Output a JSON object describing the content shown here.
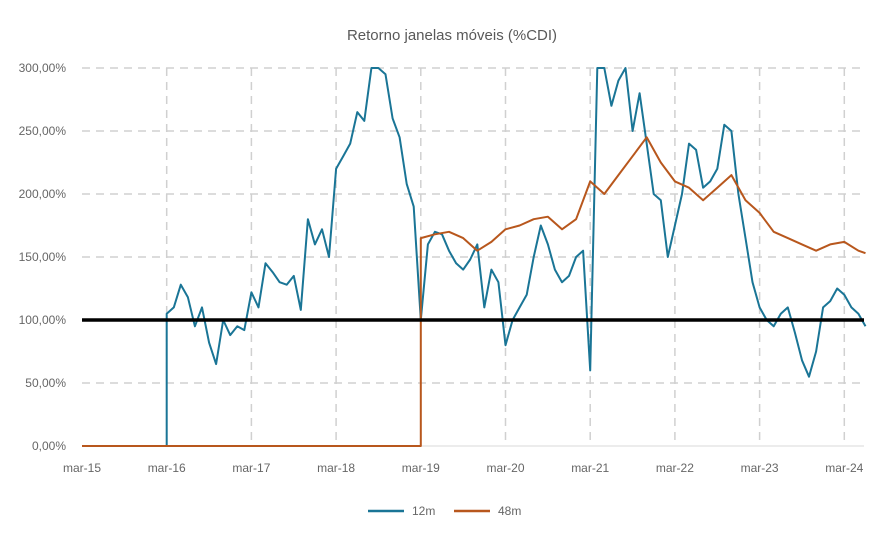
{
  "chart_data": {
    "type": "line",
    "title": "Retorno janelas móveis (%CDI)",
    "x_tick_labels": [
      "mar-15",
      "mar-16",
      "mar-17",
      "mar-18",
      "mar-19",
      "mar-20",
      "mar-21",
      "mar-22",
      "mar-23",
      "mar-24"
    ],
    "x_start": "2015-03",
    "x_end": "2024-06",
    "ylim": [
      0,
      300
    ],
    "y_ticks": [
      0,
      50,
      100,
      150,
      200,
      250,
      300
    ],
    "y_tick_labels": [
      "0,00%",
      "50,00%",
      "100,00%",
      "150,00%",
      "200,00%",
      "250,00%",
      "300,00%"
    ],
    "grid": true,
    "reference_line": {
      "y": 100,
      "color": "#000000"
    },
    "legend_position": "bottom",
    "series": [
      {
        "name": "12m",
        "color": "#1A7596",
        "points": [
          [
            "2015-03",
            0
          ],
          [
            "2016-02",
            0
          ],
          [
            "2016-03",
            0
          ],
          [
            "2016-03",
            105
          ],
          [
            "2016-04",
            110
          ],
          [
            "2016-05",
            128
          ],
          [
            "2016-06",
            118
          ],
          [
            "2016-07",
            95
          ],
          [
            "2016-08",
            110
          ],
          [
            "2016-09",
            82
          ],
          [
            "2016-10",
            65
          ],
          [
            "2016-11",
            100
          ],
          [
            "2016-12",
            88
          ],
          [
            "2017-01",
            95
          ],
          [
            "2017-02",
            92
          ],
          [
            "2017-03",
            122
          ],
          [
            "2017-04",
            110
          ],
          [
            "2017-05",
            145
          ],
          [
            "2017-06",
            138
          ],
          [
            "2017-07",
            130
          ],
          [
            "2017-08",
            128
          ],
          [
            "2017-09",
            135
          ],
          [
            "2017-10",
            108
          ],
          [
            "2017-11",
            180
          ],
          [
            "2017-12",
            160
          ],
          [
            "2018-01",
            172
          ],
          [
            "2018-02",
            150
          ],
          [
            "2018-03",
            220
          ],
          [
            "2018-04",
            230
          ],
          [
            "2018-05",
            240
          ],
          [
            "2018-06",
            265
          ],
          [
            "2018-07",
            258
          ],
          [
            "2018-08",
            300
          ],
          [
            "2018-09",
            300
          ],
          [
            "2018-10",
            295
          ],
          [
            "2018-11",
            260
          ],
          [
            "2018-12",
            245
          ],
          [
            "2019-01",
            208
          ],
          [
            "2019-02",
            190
          ],
          [
            "2019-03",
            100
          ],
          [
            "2019-04",
            160
          ],
          [
            "2019-05",
            170
          ],
          [
            "2019-06",
            168
          ],
          [
            "2019-07",
            155
          ],
          [
            "2019-08",
            145
          ],
          [
            "2019-09",
            140
          ],
          [
            "2019-10",
            148
          ],
          [
            "2019-11",
            160
          ],
          [
            "2019-12",
            110
          ],
          [
            "2020-01",
            140
          ],
          [
            "2020-02",
            130
          ],
          [
            "2020-03",
            80
          ],
          [
            "2020-04",
            100
          ],
          [
            "2020-05",
            110
          ],
          [
            "2020-06",
            120
          ],
          [
            "2020-07",
            150
          ],
          [
            "2020-08",
            175
          ],
          [
            "2020-09",
            160
          ],
          [
            "2020-10",
            140
          ],
          [
            "2020-11",
            130
          ],
          [
            "2020-12",
            135
          ],
          [
            "2021-01",
            150
          ],
          [
            "2021-02",
            155
          ],
          [
            "2021-03",
            60
          ],
          [
            "2021-04",
            300
          ],
          [
            "2021-05",
            300
          ],
          [
            "2021-06",
            270
          ],
          [
            "2021-07",
            290
          ],
          [
            "2021-08",
            300
          ],
          [
            "2021-09",
            250
          ],
          [
            "2021-10",
            280
          ],
          [
            "2021-11",
            240
          ],
          [
            "2021-12",
            200
          ],
          [
            "2022-01",
            195
          ],
          [
            "2022-02",
            150
          ],
          [
            "2022-03",
            175
          ],
          [
            "2022-04",
            200
          ],
          [
            "2022-05",
            240
          ],
          [
            "2022-06",
            235
          ],
          [
            "2022-07",
            205
          ],
          [
            "2022-08",
            210
          ],
          [
            "2022-09",
            220
          ],
          [
            "2022-10",
            255
          ],
          [
            "2022-11",
            250
          ],
          [
            "2022-12",
            200
          ],
          [
            "2023-01",
            165
          ],
          [
            "2023-02",
            130
          ],
          [
            "2023-03",
            110
          ],
          [
            "2023-04",
            100
          ],
          [
            "2023-05",
            95
          ],
          [
            "2023-06",
            105
          ],
          [
            "2023-07",
            110
          ],
          [
            "2023-08",
            90
          ],
          [
            "2023-09",
            68
          ],
          [
            "2023-10",
            55
          ],
          [
            "2023-11",
            75
          ],
          [
            "2023-12",
            110
          ],
          [
            "2024-01",
            115
          ],
          [
            "2024-02",
            125
          ],
          [
            "2024-03",
            120
          ],
          [
            "2024-04",
            110
          ],
          [
            "2024-05",
            105
          ],
          [
            "2024-06",
            95
          ]
        ]
      },
      {
        "name": "48m",
        "color": "#B8571D",
        "points": [
          [
            "2015-03",
            0
          ],
          [
            "2019-03",
            0
          ],
          [
            "2019-03",
            165
          ],
          [
            "2019-05",
            168
          ],
          [
            "2019-07",
            170
          ],
          [
            "2019-09",
            165
          ],
          [
            "2019-11",
            155
          ],
          [
            "2020-01",
            162
          ],
          [
            "2020-03",
            172
          ],
          [
            "2020-05",
            175
          ],
          [
            "2020-07",
            180
          ],
          [
            "2020-09",
            182
          ],
          [
            "2020-11",
            172
          ],
          [
            "2021-01",
            180
          ],
          [
            "2021-03",
            210
          ],
          [
            "2021-05",
            200
          ],
          [
            "2021-07",
            215
          ],
          [
            "2021-09",
            230
          ],
          [
            "2021-11",
            245
          ],
          [
            "2022-01",
            225
          ],
          [
            "2022-03",
            210
          ],
          [
            "2022-05",
            205
          ],
          [
            "2022-07",
            195
          ],
          [
            "2022-09",
            205
          ],
          [
            "2022-11",
            215
          ],
          [
            "2023-01",
            195
          ],
          [
            "2023-03",
            185
          ],
          [
            "2023-05",
            170
          ],
          [
            "2023-07",
            165
          ],
          [
            "2023-09",
            160
          ],
          [
            "2023-11",
            155
          ],
          [
            "2024-01",
            160
          ],
          [
            "2024-03",
            162
          ],
          [
            "2024-05",
            155
          ],
          [
            "2024-06",
            153
          ]
        ]
      }
    ]
  }
}
